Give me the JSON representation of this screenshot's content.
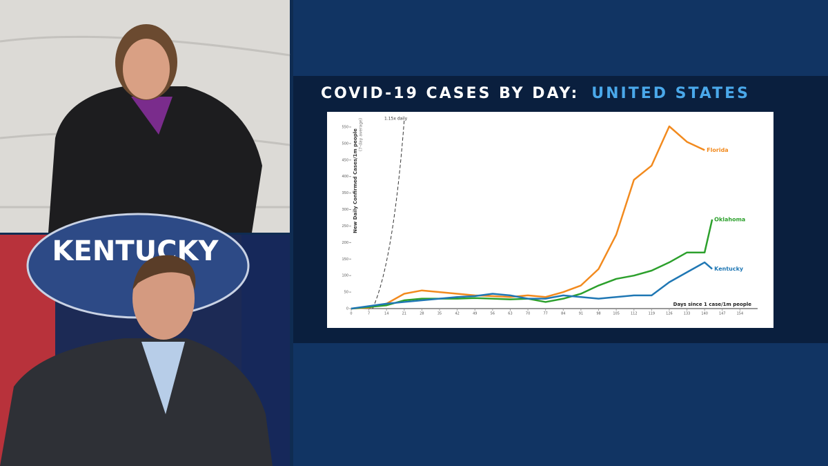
{
  "scene": {
    "sign": "KENTUCKY"
  },
  "chart_data": {
    "type": "line",
    "title": "COVID-19 CASES BY DAY:",
    "title_highlight": "UNITED STATES",
    "y_label": "New Daily Confirmed Cases/1m people",
    "y_sublabel": "(7-day average)",
    "x_label": "Days since 1 case/1m people",
    "annotation": "1.15x daily",
    "xlim": [
      0,
      161
    ],
    "ylim": [
      0,
      575
    ],
    "xticks": [
      0,
      7,
      14,
      21,
      28,
      35,
      42,
      49,
      56,
      63,
      70,
      77,
      84,
      91,
      98,
      105,
      112,
      119,
      126,
      133,
      140,
      147,
      154
    ],
    "yticks": [
      0,
      50,
      100,
      150,
      200,
      250,
      300,
      350,
      400,
      450,
      500,
      550
    ],
    "series": [
      {
        "name": "Florida",
        "color": "#f28a1e",
        "x": [
          0,
          7,
          14,
          21,
          28,
          35,
          42,
          49,
          56,
          63,
          70,
          77,
          84,
          91,
          98,
          105,
          112,
          119,
          126,
          133,
          140
        ],
        "values": [
          0,
          3,
          15,
          45,
          55,
          50,
          45,
          40,
          38,
          35,
          40,
          35,
          50,
          70,
          120,
          224,
          390,
          433,
          552,
          505,
          480
        ]
      },
      {
        "name": "Oklahoma",
        "color": "#2ca02c",
        "x": [
          0,
          14,
          21,
          28,
          35,
          42,
          49,
          56,
          63,
          70,
          77,
          84,
          91,
          98,
          105,
          112,
          119,
          126,
          133,
          140,
          143
        ],
        "values": [
          0,
          10,
          25,
          30,
          30,
          30,
          32,
          30,
          28,
          30,
          20,
          30,
          45,
          70,
          90,
          100,
          115,
          140,
          170,
          170,
          270
        ]
      },
      {
        "name": "Kentucky",
        "color": "#1f77b4",
        "x": [
          0,
          14,
          21,
          28,
          35,
          42,
          49,
          56,
          63,
          70,
          77,
          84,
          91,
          98,
          105,
          112,
          119,
          126,
          133,
          140,
          143
        ],
        "values": [
          0,
          15,
          20,
          25,
          30,
          35,
          38,
          45,
          40,
          30,
          30,
          40,
          35,
          30,
          35,
          40,
          40,
          80,
          110,
          140,
          120
        ]
      }
    ]
  }
}
